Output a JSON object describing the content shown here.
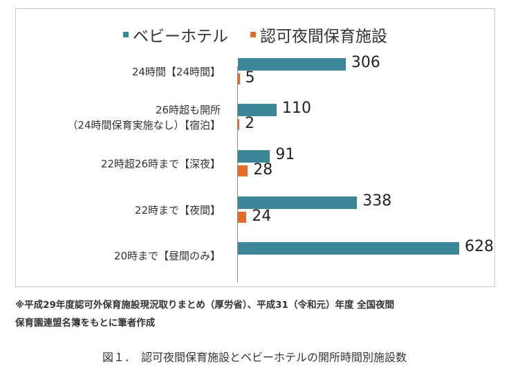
{
  "chart_data": {
    "type": "bar",
    "orientation": "horizontal",
    "categories": [
      "24時間【24時間】",
      "26時超も開所\n（24時間保育実施なし）【宿泊】",
      "22時超26時まで【深夜】",
      "22時まで【夜間】",
      "20時まで【昼間のみ】"
    ],
    "series": [
      {
        "name": "ベビーホテル",
        "color": "#3a8597",
        "values": [
          306,
          110,
          91,
          338,
          628
        ]
      },
      {
        "name": "認可夜間保育施設",
        "color": "#e46b2a",
        "values": [
          5,
          2,
          28,
          24,
          null
        ]
      }
    ],
    "legend_position": "top",
    "grid": false,
    "xlim": [
      0,
      650
    ]
  },
  "note": [
    "※平成29年度認可外保育施設現況取りまとめ（厚労省）、平成31（令和元）年度 全国夜間",
    "保育園連盟名簿をもとに筆者作成"
  ],
  "caption": "図１．　認可夜間保育施設とベビーホテルの開所時間別施設数"
}
